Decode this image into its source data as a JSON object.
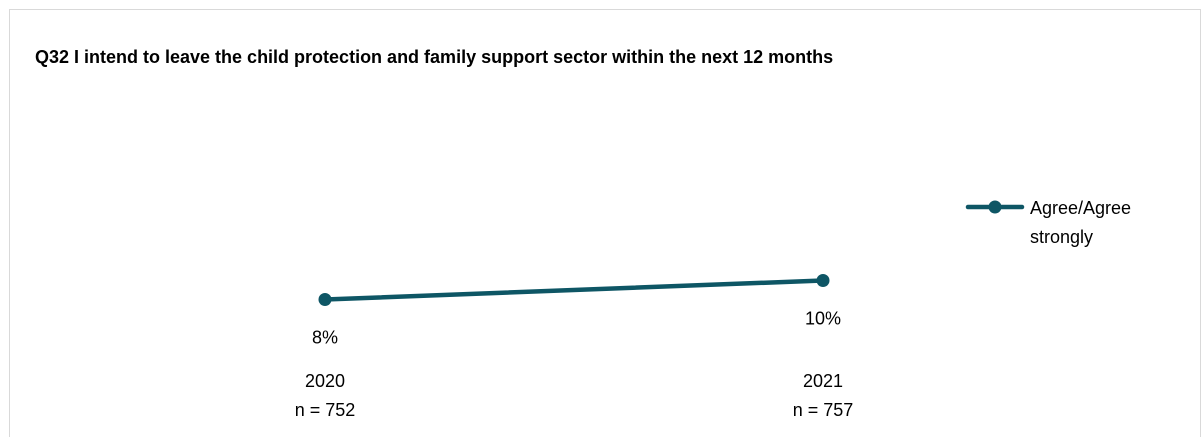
{
  "chart_data": {
    "type": "line",
    "title": "Q32 I intend to leave the child protection and family support sector within the next 12 months",
    "categories": [
      {
        "year": "2020",
        "n": "n = 752"
      },
      {
        "year": "2021",
        "n": "n = 757"
      }
    ],
    "series": [
      {
        "name": "Agree/Agree strongly",
        "values": [
          8,
          10
        ],
        "labels": [
          "8%",
          "10%"
        ],
        "color": "#0e5665"
      }
    ],
    "legend": {
      "position": "right",
      "lines": [
        "Agree/Agree",
        "strongly"
      ]
    },
    "grid": false,
    "axes_visible": false
  }
}
